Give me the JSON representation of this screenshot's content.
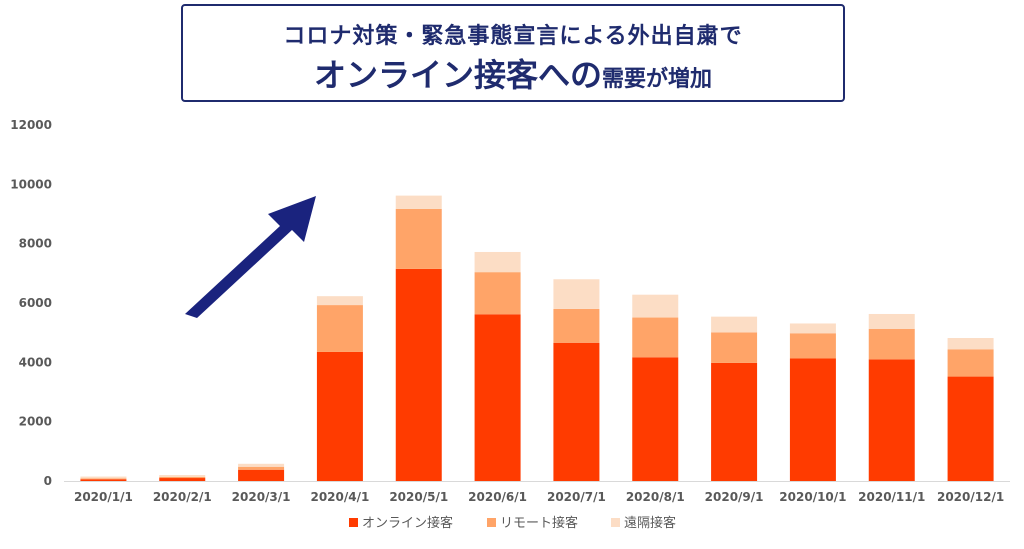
{
  "header": {
    "line1": "コロナ対策・緊急事態宣言による外出自粛で",
    "line2_big": "オンライン接客への",
    "line2_small": "需要が増加"
  },
  "colors": {
    "title": "#1f2b6e",
    "arrow": "#1a237e"
  },
  "chart_data": {
    "type": "bar",
    "stacked": true,
    "categories": [
      "2020/1/1",
      "2020/2/1",
      "2020/3/1",
      "2020/4/1",
      "2020/5/1",
      "2020/6/1",
      "2020/7/1",
      "2020/8/1",
      "2020/9/1",
      "2020/10/1",
      "2020/11/1",
      "2020/12/1"
    ],
    "series": [
      {
        "name": "オンライン接客",
        "color": "#ff3b00",
        "values": [
          60,
          100,
          380,
          4350,
          7150,
          5620,
          4660,
          4170,
          3980,
          4130,
          4100,
          3520
        ]
      },
      {
        "name": "リモート接客",
        "color": "#ffa468",
        "values": [
          30,
          40,
          100,
          1580,
          2020,
          1420,
          1140,
          1340,
          1030,
          850,
          1030,
          920
        ]
      },
      {
        "name": "遠隔接客",
        "color": "#fcddc5",
        "values": [
          60,
          60,
          100,
          300,
          450,
          680,
          1000,
          770,
          530,
          330,
          500,
          380
        ]
      }
    ],
    "yticks": [
      0,
      2000,
      4000,
      6000,
      8000,
      10000,
      12000
    ],
    "ylim": [
      0,
      12000
    ],
    "grid": false,
    "legend_position": "bottom"
  }
}
